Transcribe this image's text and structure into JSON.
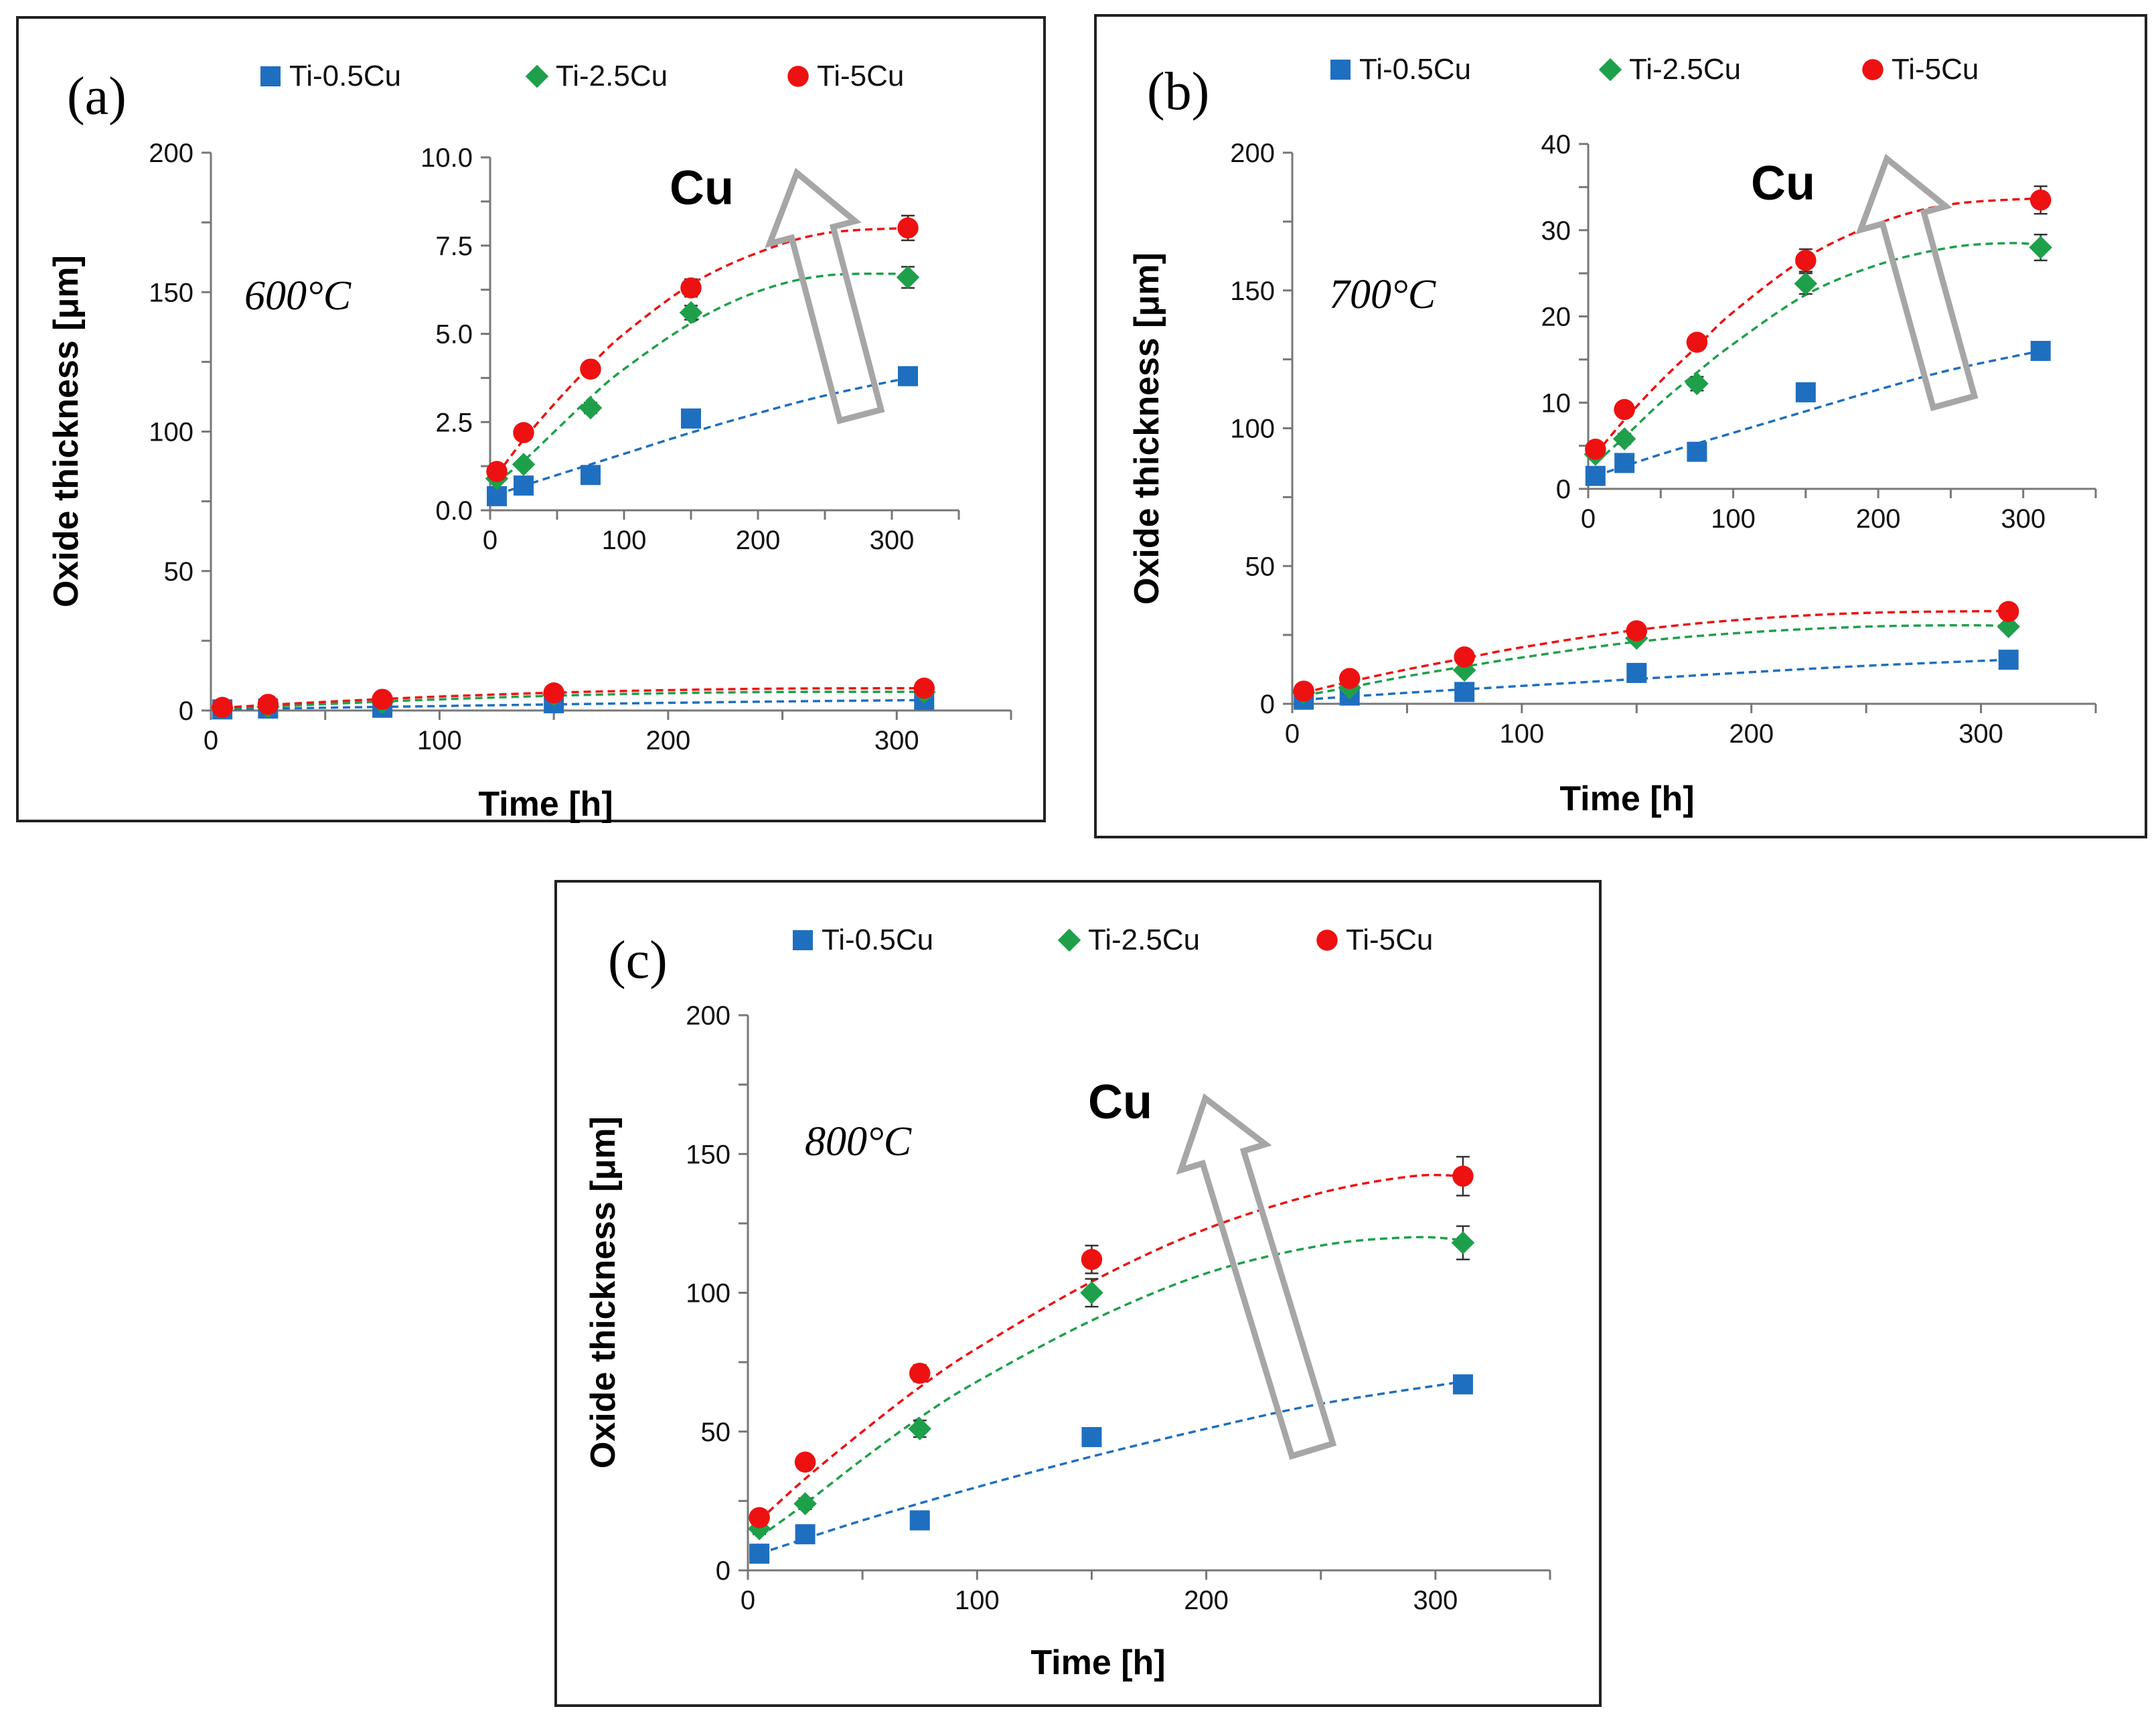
{
  "series_styles": [
    {
      "name": "Ti-0.5Cu",
      "marker": "square",
      "color": "#1f6fc0"
    },
    {
      "name": "Ti-2.5Cu",
      "marker": "diamond",
      "color": "#1ea04a"
    },
    {
      "name": "Ti-5Cu",
      "marker": "circle",
      "color": "#ee1111"
    }
  ],
  "arrow_label": "Cu",
  "chart_data": [
    {
      "type": "scatter",
      "panel_label": "(a)",
      "temperature": "600°C",
      "xlabel": "Time [h]",
      "ylabel": "Oxide thickness [μm]",
      "xlim": [
        0,
        350
      ],
      "ylim": [
        0,
        200
      ],
      "x_ticks": [
        "0",
        "100",
        "200",
        "300"
      ],
      "y_ticks": [
        "0",
        "50",
        "100",
        "150",
        "200"
      ],
      "legend": [
        "Ti-0.5Cu",
        "Ti-2.5Cu",
        "Ti-5Cu"
      ],
      "x": [
        5,
        25,
        75,
        150,
        312
      ],
      "series": [
        {
          "name": "Ti-0.5Cu",
          "values": [
            0.4,
            0.7,
            1.0,
            2.6,
            3.8
          ]
        },
        {
          "name": "Ti-2.5Cu",
          "values": [
            0.9,
            1.3,
            2.9,
            5.6,
            6.6
          ],
          "errors": [
            0.1,
            0.1,
            0.15,
            0.2,
            0.3
          ]
        },
        {
          "name": "Ti-5Cu",
          "values": [
            1.1,
            2.2,
            4.0,
            6.3,
            8.0
          ],
          "errors": [
            0.1,
            0.15,
            0.15,
            0.25,
            0.35
          ]
        }
      ],
      "fits": [
        {
          "name": "Ti-0.5Cu",
          "points": [
            [
              5,
              0.45
            ],
            [
              50,
              1.0
            ],
            [
              100,
              1.6
            ],
            [
              150,
              2.2
            ],
            [
              200,
              2.75
            ],
            [
              250,
              3.25
            ],
            [
              312,
              3.75
            ]
          ]
        },
        {
          "name": "Ti-2.5Cu",
          "points": [
            [
              5,
              0.8
            ],
            [
              25,
              1.4
            ],
            [
              50,
              2.3
            ],
            [
              75,
              3.2
            ],
            [
              100,
              4.0
            ],
            [
              150,
              5.3
            ],
            [
              200,
              6.2
            ],
            [
              250,
              6.65
            ],
            [
              312,
              6.7
            ]
          ]
        },
        {
          "name": "Ti-5Cu",
          "points": [
            [
              5,
              1.0
            ],
            [
              25,
              2.0
            ],
            [
              50,
              3.1
            ],
            [
              75,
              4.1
            ],
            [
              100,
              5.0
            ],
            [
              150,
              6.4
            ],
            [
              200,
              7.3
            ],
            [
              250,
              7.85
            ],
            [
              312,
              8.0
            ]
          ]
        }
      ],
      "inset": {
        "xlim": [
          0,
          350
        ],
        "ylim": [
          0,
          10
        ],
        "x_ticks": [
          "0",
          "100",
          "200",
          "300"
        ],
        "y_ticks": [
          "0.0",
          "2.5",
          "5.0",
          "7.5",
          "10.0"
        ]
      }
    },
    {
      "type": "scatter",
      "panel_label": "(b)",
      "temperature": "700°C",
      "xlabel": "Time [h]",
      "ylabel": "Oxide thickness [μm]",
      "xlim": [
        0,
        350
      ],
      "ylim": [
        0,
        200
      ],
      "x_ticks": [
        "0",
        "100",
        "200",
        "300"
      ],
      "y_ticks": [
        "0",
        "50",
        "100",
        "150",
        "200"
      ],
      "legend": [
        "Ti-0.5Cu",
        "Ti-2.5Cu",
        "Ti-5Cu"
      ],
      "x": [
        5,
        25,
        75,
        150,
        312
      ],
      "series": [
        {
          "name": "Ti-0.5Cu",
          "values": [
            1.5,
            3.0,
            4.3,
            11.2,
            16.0
          ]
        },
        {
          "name": "Ti-2.5Cu",
          "values": [
            4.0,
            5.8,
            12.2,
            23.8,
            28.0
          ],
          "errors": [
            0.4,
            0.6,
            0.8,
            1.2,
            1.5
          ]
        },
        {
          "name": "Ti-5Cu",
          "values": [
            4.6,
            9.2,
            17.0,
            26.5,
            33.5
          ],
          "errors": [
            0.4,
            0.6,
            0.8,
            1.3,
            1.6
          ]
        }
      ],
      "fits": [
        {
          "name": "Ti-0.5Cu",
          "points": [
            [
              5,
              1.5
            ],
            [
              50,
              4.0
            ],
            [
              100,
              6.5
            ],
            [
              150,
              9.0
            ],
            [
              200,
              11.5
            ],
            [
              250,
              13.8
            ],
            [
              312,
              16.0
            ]
          ]
        },
        {
          "name": "Ti-2.5Cu",
          "points": [
            [
              5,
              3.0
            ],
            [
              25,
              6.0
            ],
            [
              50,
              10.0
            ],
            [
              75,
              13.5
            ],
            [
              100,
              16.8
            ],
            [
              150,
              22.5
            ],
            [
              200,
              26.0
            ],
            [
              250,
              28.0
            ],
            [
              290,
              28.5
            ],
            [
              312,
              28.3
            ]
          ]
        },
        {
          "name": "Ti-5Cu",
          "points": [
            [
              5,
              4.0
            ],
            [
              25,
              8.0
            ],
            [
              50,
              12.5
            ],
            [
              75,
              16.5
            ],
            [
              100,
              20.5
            ],
            [
              150,
              26.8
            ],
            [
              200,
              30.8
            ],
            [
              250,
              33.0
            ],
            [
              312,
              33.7
            ]
          ]
        }
      ],
      "inset": {
        "xlim": [
          0,
          350
        ],
        "ylim": [
          0,
          40
        ],
        "x_ticks": [
          "0",
          "100",
          "200",
          "300"
        ],
        "y_ticks": [
          "0",
          "10",
          "20",
          "30",
          "40"
        ]
      }
    },
    {
      "type": "scatter",
      "panel_label": "(c)",
      "temperature": "800°C",
      "xlabel": "Time [h]",
      "ylabel": "Oxide thickness [μm]",
      "xlim": [
        0,
        350
      ],
      "ylim": [
        0,
        200
      ],
      "x_ticks": [
        "0",
        "100",
        "200",
        "300"
      ],
      "y_ticks": [
        "0",
        "50",
        "100",
        "150",
        "200"
      ],
      "legend": [
        "Ti-0.5Cu",
        "Ti-2.5Cu",
        "Ti-5Cu"
      ],
      "x": [
        5,
        25,
        75,
        150,
        312
      ],
      "series": [
        {
          "name": "Ti-0.5Cu",
          "values": [
            6,
            13,
            18,
            48,
            67
          ]
        },
        {
          "name": "Ti-2.5Cu",
          "values": [
            15,
            24,
            51,
            100,
            118
          ],
          "errors": [
            2,
            2,
            3,
            5,
            6
          ]
        },
        {
          "name": "Ti-5Cu",
          "values": [
            19,
            39,
            71,
            112,
            142
          ],
          "errors": [
            2,
            2,
            3,
            5,
            7
          ]
        }
      ],
      "fits": [
        {
          "name": "Ti-0.5Cu",
          "points": [
            [
              5,
              6
            ],
            [
              50,
              18
            ],
            [
              100,
              30
            ],
            [
              150,
              41
            ],
            [
              200,
              51
            ],
            [
              250,
              60
            ],
            [
              312,
              68
            ]
          ]
        },
        {
          "name": "Ti-2.5Cu",
          "points": [
            [
              5,
              12
            ],
            [
              25,
              24
            ],
            [
              50,
              40
            ],
            [
              75,
              55
            ],
            [
              100,
              68
            ],
            [
              150,
              90
            ],
            [
              200,
              107
            ],
            [
              250,
              117
            ],
            [
              290,
              120
            ],
            [
              312,
              119
            ]
          ]
        },
        {
          "name": "Ti-5Cu",
          "points": [
            [
              5,
              18
            ],
            [
              25,
              33
            ],
            [
              50,
              50
            ],
            [
              75,
              66
            ],
            [
              100,
              80
            ],
            [
              150,
              104
            ],
            [
              200,
              123
            ],
            [
              250,
              136
            ],
            [
              290,
              142
            ],
            [
              312,
              142
            ]
          ]
        }
      ]
    }
  ]
}
